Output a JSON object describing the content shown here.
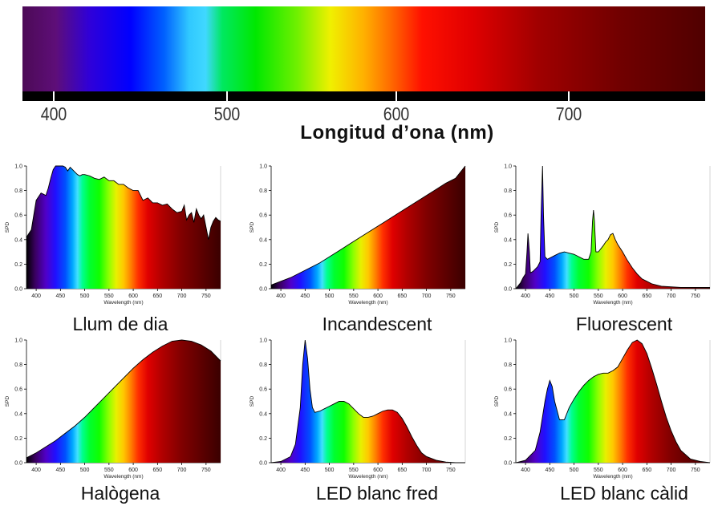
{
  "spectrum_bar": {
    "ticks": [
      "400",
      "500",
      "600",
      "700"
    ],
    "xlabel": "Longitud d’ona (nm)"
  },
  "chart_data": [
    {
      "type": "area",
      "caption": "Llum de dia",
      "xlabel": "Wavelength (nm)",
      "ylabel": "SPD",
      "xlim": [
        380,
        780
      ],
      "ylim": [
        0,
        1.0
      ],
      "xticks": [
        400,
        450,
        500,
        550,
        600,
        650,
        700,
        750
      ],
      "yticks": [
        0.0,
        0.2,
        0.4,
        0.6,
        0.8,
        1.0
      ],
      "x": [
        380,
        385,
        390,
        395,
        400,
        405,
        410,
        415,
        420,
        425,
        430,
        435,
        440,
        445,
        450,
        455,
        460,
        465,
        470,
        475,
        480,
        485,
        490,
        495,
        500,
        510,
        520,
        530,
        540,
        550,
        560,
        570,
        580,
        590,
        600,
        610,
        620,
        630,
        640,
        650,
        660,
        670,
        680,
        690,
        700,
        705,
        710,
        715,
        720,
        725,
        730,
        735,
        740,
        745,
        750,
        755,
        760,
        765,
        770,
        775,
        780
      ],
      "y": [
        0.42,
        0.45,
        0.48,
        0.6,
        0.72,
        0.75,
        0.78,
        0.77,
        0.76,
        0.82,
        0.9,
        0.97,
        1.0,
        1.0,
        1.0,
        1.0,
        0.99,
        0.96,
        0.99,
        0.97,
        0.95,
        0.93,
        0.92,
        0.93,
        0.93,
        0.92,
        0.9,
        0.89,
        0.91,
        0.88,
        0.88,
        0.85,
        0.85,
        0.82,
        0.8,
        0.8,
        0.72,
        0.74,
        0.7,
        0.7,
        0.68,
        0.69,
        0.65,
        0.62,
        0.63,
        0.68,
        0.56,
        0.6,
        0.62,
        0.54,
        0.65,
        0.6,
        0.57,
        0.6,
        0.5,
        0.4,
        0.5,
        0.55,
        0.58,
        0.56,
        0.55
      ]
    },
    {
      "type": "area",
      "caption": "Incandescent",
      "xlabel": "Wavelength (nm)",
      "ylabel": "SPD",
      "xlim": [
        380,
        780
      ],
      "ylim": [
        0,
        1.0
      ],
      "xticks": [
        400,
        450,
        500,
        550,
        600,
        650,
        700,
        750
      ],
      "yticks": [
        0.0,
        0.2,
        0.4,
        0.6,
        0.8,
        1.0
      ],
      "x": [
        380,
        400,
        420,
        440,
        460,
        480,
        500,
        520,
        540,
        560,
        580,
        600,
        620,
        640,
        660,
        680,
        700,
        720,
        740,
        760,
        770,
        780
      ],
      "y": [
        0.03,
        0.06,
        0.09,
        0.13,
        0.17,
        0.21,
        0.26,
        0.31,
        0.36,
        0.41,
        0.46,
        0.51,
        0.56,
        0.61,
        0.66,
        0.71,
        0.76,
        0.81,
        0.86,
        0.9,
        0.95,
        1.0
      ]
    },
    {
      "type": "area",
      "caption": "Fluorescent",
      "xlabel": "Wavelength (nm)",
      "ylabel": "SPD",
      "xlim": [
        380,
        780
      ],
      "ylim": [
        0,
        1.0
      ],
      "xticks": [
        400,
        450,
        500,
        550,
        600,
        650,
        700,
        750
      ],
      "yticks": [
        0.0,
        0.2,
        0.4,
        0.6,
        0.8,
        1.0
      ],
      "x": [
        380,
        390,
        395,
        400,
        403,
        405,
        408,
        410,
        415,
        420,
        425,
        430,
        432,
        435,
        437,
        440,
        445,
        450,
        460,
        470,
        480,
        490,
        500,
        510,
        520,
        530,
        535,
        538,
        540,
        542,
        545,
        550,
        560,
        565,
        570,
        575,
        580,
        585,
        590,
        600,
        610,
        620,
        630,
        640,
        650,
        660,
        670,
        680,
        700,
        720,
        740,
        760,
        780
      ],
      "y": [
        0.0,
        0.05,
        0.09,
        0.12,
        0.3,
        0.45,
        0.3,
        0.13,
        0.14,
        0.16,
        0.18,
        0.22,
        0.6,
        1.0,
        0.6,
        0.26,
        0.24,
        0.25,
        0.27,
        0.29,
        0.3,
        0.29,
        0.28,
        0.26,
        0.24,
        0.24,
        0.3,
        0.55,
        0.64,
        0.55,
        0.3,
        0.3,
        0.35,
        0.38,
        0.4,
        0.44,
        0.45,
        0.4,
        0.36,
        0.3,
        0.23,
        0.17,
        0.12,
        0.08,
        0.06,
        0.04,
        0.03,
        0.02,
        0.015,
        0.01,
        0.01,
        0.01,
        0.01
      ]
    },
    {
      "type": "area",
      "caption": "Halògena",
      "xlabel": "Wavelength (nm)",
      "ylabel": "SPD",
      "xlim": [
        380,
        780
      ],
      "ylim": [
        0,
        1.0
      ],
      "xticks": [
        400,
        450,
        500,
        550,
        600,
        650,
        700,
        750
      ],
      "yticks": [
        0.0,
        0.2,
        0.4,
        0.6,
        0.8,
        1.0
      ],
      "x": [
        380,
        400,
        420,
        440,
        460,
        480,
        500,
        520,
        540,
        560,
        580,
        600,
        620,
        640,
        660,
        680,
        700,
        720,
        740,
        760,
        780
      ],
      "y": [
        0.04,
        0.08,
        0.13,
        0.18,
        0.24,
        0.3,
        0.37,
        0.45,
        0.53,
        0.61,
        0.69,
        0.77,
        0.84,
        0.9,
        0.95,
        0.99,
        1.0,
        0.99,
        0.96,
        0.91,
        0.83
      ]
    },
    {
      "type": "area",
      "caption": "LED blanc fred",
      "xlabel": "Wavelength (nm)",
      "ylabel": "SPD",
      "xlim": [
        380,
        780
      ],
      "ylim": [
        0,
        1.0
      ],
      "xticks": [
        400,
        450,
        500,
        550,
        600,
        650,
        700,
        750
      ],
      "yticks": [
        0.0,
        0.2,
        0.4,
        0.6,
        0.8,
        1.0
      ],
      "x": [
        380,
        400,
        420,
        430,
        440,
        445,
        450,
        455,
        460,
        465,
        470,
        480,
        490,
        500,
        510,
        520,
        530,
        540,
        550,
        560,
        570,
        580,
        590,
        600,
        610,
        620,
        630,
        640,
        650,
        660,
        670,
        680,
        690,
        700,
        720,
        740,
        760,
        780
      ],
      "y": [
        0.0,
        0.01,
        0.05,
        0.15,
        0.45,
        0.8,
        1.0,
        0.85,
        0.6,
        0.45,
        0.41,
        0.42,
        0.44,
        0.46,
        0.48,
        0.5,
        0.5,
        0.48,
        0.44,
        0.4,
        0.37,
        0.37,
        0.38,
        0.4,
        0.42,
        0.43,
        0.43,
        0.41,
        0.36,
        0.29,
        0.21,
        0.14,
        0.08,
        0.05,
        0.02,
        0.005,
        0.0,
        0.0
      ]
    },
    {
      "type": "area",
      "caption": "LED blanc càlid",
      "xlabel": "Wavelength (nm)",
      "ylabel": "SPD",
      "xlim": [
        380,
        780
      ],
      "ylim": [
        0,
        1.0
      ],
      "xticks": [
        400,
        450,
        500,
        550,
        600,
        650,
        700,
        750
      ],
      "yticks": [
        0.0,
        0.2,
        0.4,
        0.6,
        0.8,
        1.0
      ],
      "x": [
        380,
        400,
        420,
        430,
        440,
        445,
        450,
        455,
        460,
        470,
        480,
        490,
        500,
        510,
        520,
        530,
        540,
        550,
        560,
        570,
        580,
        590,
        600,
        610,
        620,
        630,
        640,
        650,
        660,
        670,
        680,
        690,
        700,
        710,
        720,
        740,
        760,
        780
      ],
      "y": [
        0.0,
        0.02,
        0.1,
        0.25,
        0.5,
        0.6,
        0.67,
        0.62,
        0.5,
        0.35,
        0.35,
        0.45,
        0.52,
        0.58,
        0.63,
        0.67,
        0.7,
        0.72,
        0.73,
        0.73,
        0.75,
        0.78,
        0.85,
        0.92,
        0.98,
        1.0,
        0.97,
        0.89,
        0.77,
        0.64,
        0.5,
        0.37,
        0.26,
        0.17,
        0.1,
        0.03,
        0.01,
        0.0
      ]
    }
  ]
}
